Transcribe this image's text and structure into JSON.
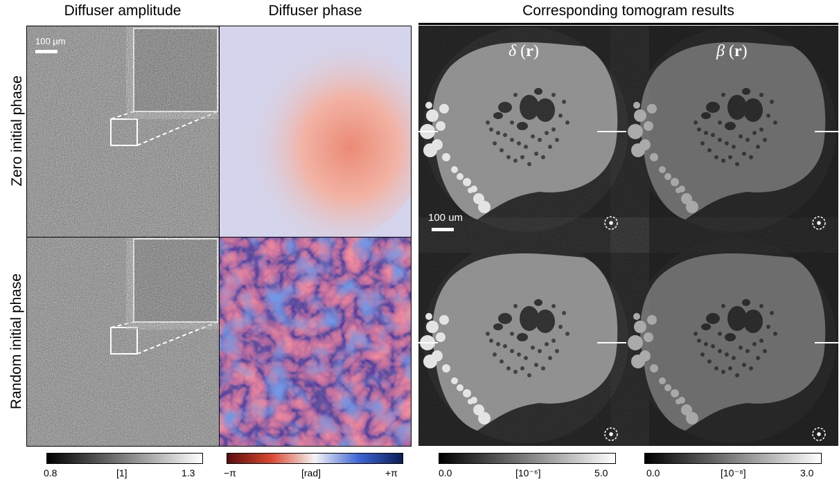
{
  "columns": {
    "amplitude_title": "Diffuser amplitude",
    "phase_title": "Diffuser phase",
    "tomogram_title": "Corresponding tomogram results"
  },
  "rows": {
    "zero_label": "Zero initial phase",
    "random_label": "Random initial phase"
  },
  "tomogram": {
    "delta_symbol": "δ",
    "beta_symbol": "β",
    "r_symbol": "r",
    "scalebar_text": "100 um"
  },
  "amplitude": {
    "scalebar_text": "100 µm"
  },
  "colorbars": {
    "amplitude": {
      "min": "0.8",
      "unit": "[1]",
      "max": "1.3"
    },
    "phase": {
      "min": "−π",
      "unit": "[rad]",
      "max": "+π"
    },
    "delta": {
      "min": "0.0",
      "unit": "[10⁻⁶]",
      "max": "5.0"
    },
    "beta": {
      "min": "0.0",
      "unit": "[10⁻⁸]",
      "max": "3.0"
    }
  },
  "colors": {
    "tomogram_bg": "#1b1b1b",
    "phase_low": "#c43a28",
    "phase_mid": "#f2f2f2",
    "phase_high": "#2b4fc0"
  }
}
